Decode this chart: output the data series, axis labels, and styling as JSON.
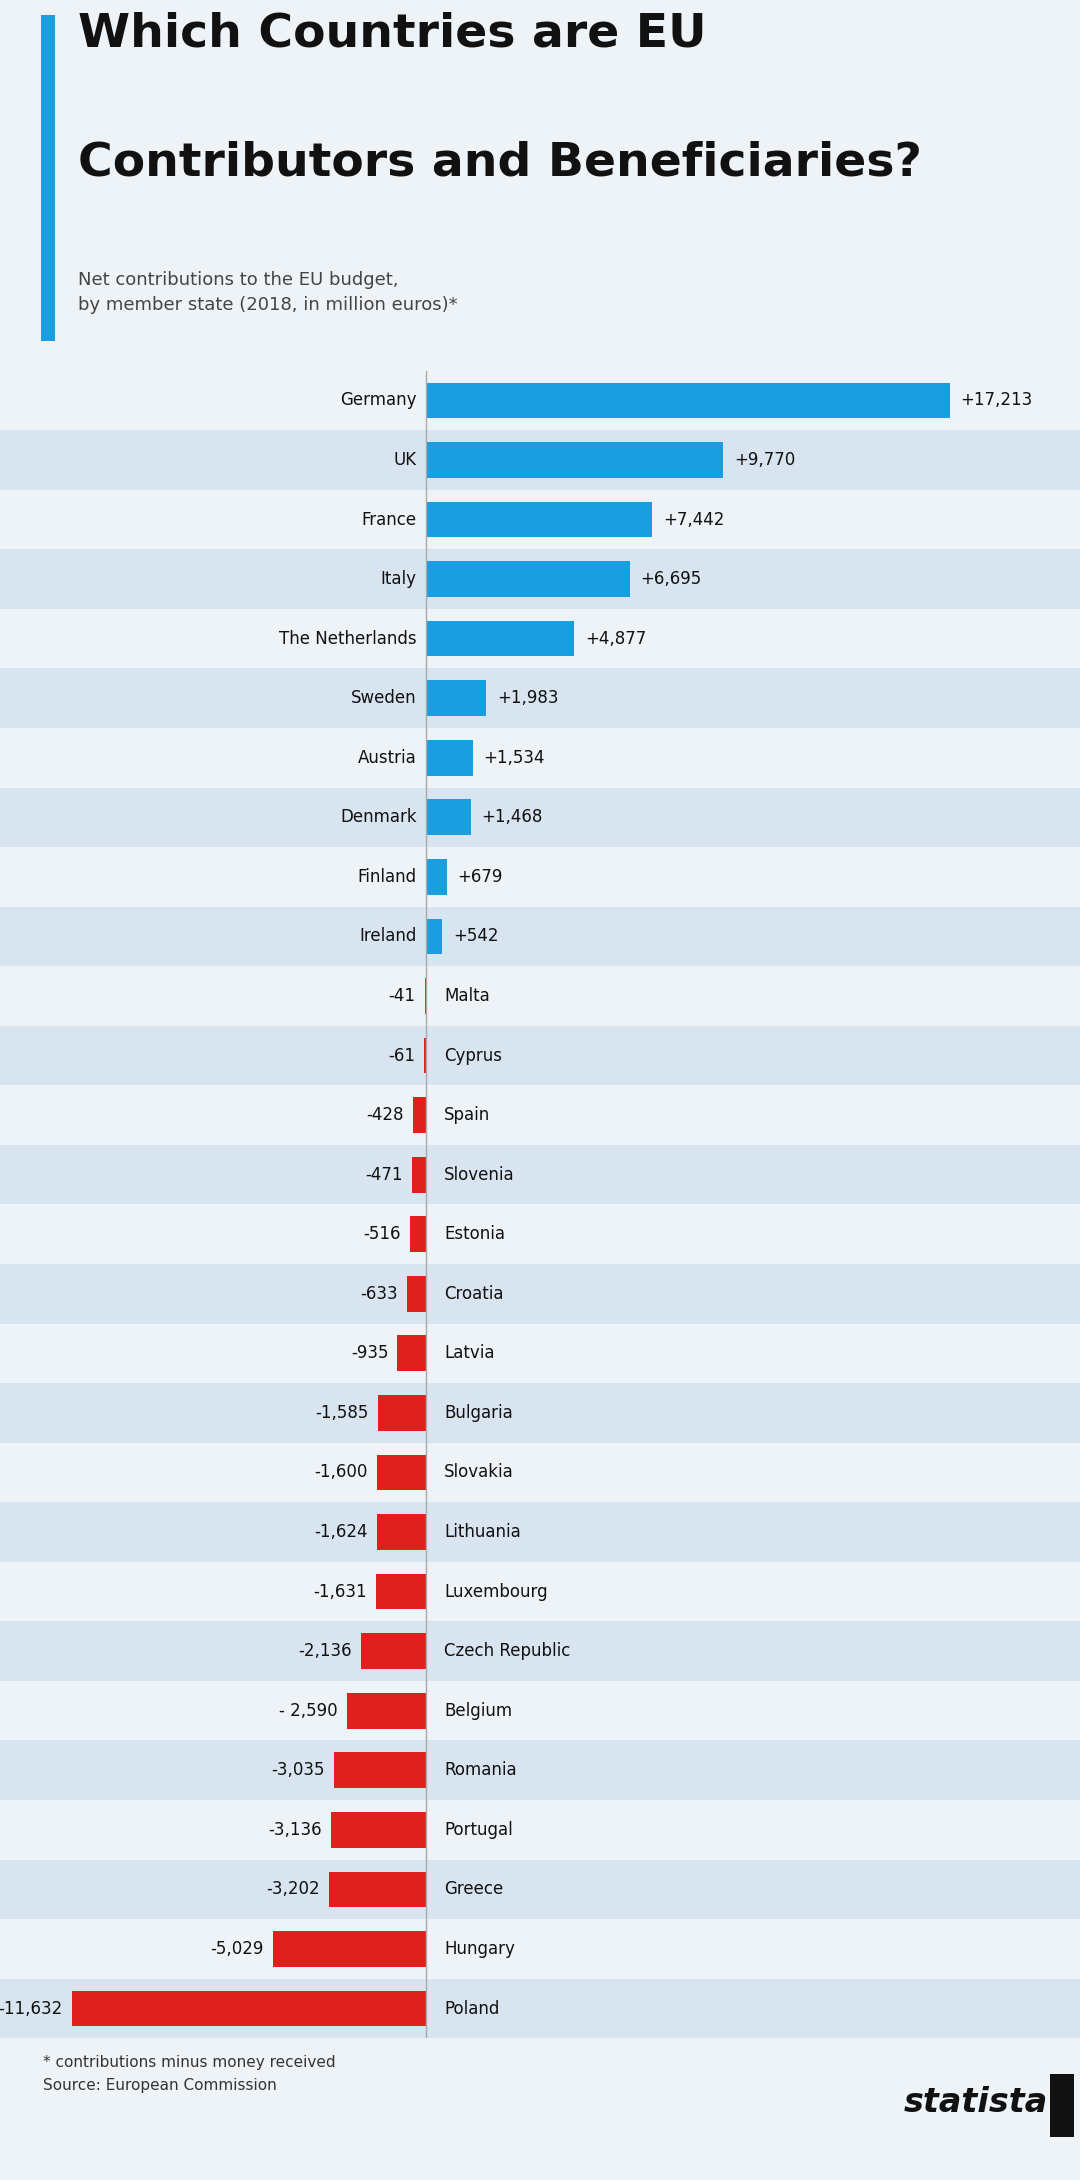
{
  "title_line1": "Which Countries are EU",
  "title_line2": "Contributors and Beneficiaries?",
  "subtitle": "Net contributions to the EU budget,\nby member state (2018, in million euros)*",
  "countries": [
    "Germany",
    "UK",
    "France",
    "Italy",
    "The Netherlands",
    "Sweden",
    "Austria",
    "Denmark",
    "Finland",
    "Ireland",
    "Malta",
    "Cyprus",
    "Spain",
    "Slovenia",
    "Estonia",
    "Croatia",
    "Latvia",
    "Bulgaria",
    "Slovakia",
    "Lithuania",
    "Luxembourg",
    "Czech Republic",
    "Belgium",
    "Romania",
    "Portugal",
    "Greece",
    "Hungary",
    "Poland"
  ],
  "values": [
    17213,
    9770,
    7442,
    6695,
    4877,
    1983,
    1534,
    1468,
    679,
    542,
    -41,
    -61,
    -428,
    -471,
    -516,
    -633,
    -935,
    -1585,
    -1600,
    -1624,
    -1631,
    -2136,
    -2590,
    -3035,
    -3136,
    -3202,
    -5029,
    -11632
  ],
  "labels": [
    "+17,213",
    "+9,770",
    "+7,442",
    "+6,695",
    "+4,877",
    "+1,983",
    "+1,534",
    "+1,468",
    "+679",
    "+542",
    "-41",
    "-61",
    "-428",
    "-471",
    "-516",
    "-633",
    "-935",
    "-1,585",
    "-1,600",
    "-1,624",
    "-1,631",
    "-2,136",
    "- 2,590",
    "-3,035",
    "-3,136",
    "-3,202",
    "-5,029",
    "-11,632"
  ],
  "positive_color": "#1a9ee0",
  "negative_color": "#e0201c",
  "bg_color": "#eef3f8",
  "row_alt_color": "#d8e4f0",
  "title_color": "#111111",
  "subtitle_color": "#444444",
  "accent_color": "#1a9ee0",
  "footnote": "* contributions minus money received\nSource: European Commission"
}
